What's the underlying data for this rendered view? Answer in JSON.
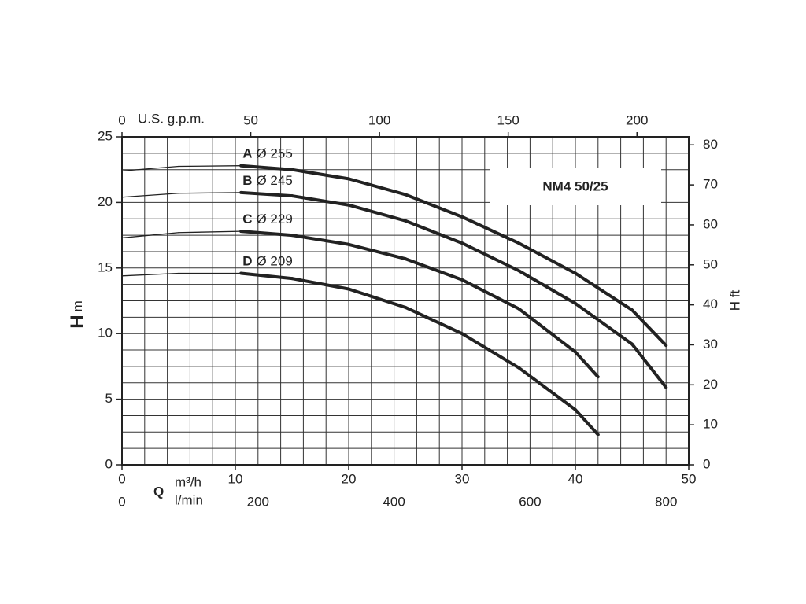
{
  "chart_data": {
    "type": "line",
    "title": "NM4 50/25",
    "x_label": {
      "symbol": "Q",
      "unit": "m³/h",
      "unit2": "l/min"
    },
    "y_label": {
      "symbol": "H",
      "unit": "m"
    },
    "y2_label": "H ft",
    "x2_label": "U.S. g.p.m.",
    "xlim": [
      0,
      50
    ],
    "xticks": [
      0,
      10,
      20,
      30,
      40,
      50
    ],
    "ylim": [
      0,
      25
    ],
    "yticks": [
      0,
      5,
      10,
      15,
      20,
      25
    ],
    "y2lim": [
      0,
      82.02
    ],
    "y2ticks": [
      0,
      10,
      20,
      30,
      40,
      50,
      60,
      70,
      80
    ],
    "x2lim": [
      0,
      220.1
    ],
    "x2ticks": [
      0,
      50,
      100,
      150,
      200
    ],
    "x3lim": [
      0,
      833.3
    ],
    "x3ticks": [
      0,
      200,
      400,
      600,
      800
    ],
    "xgrid": [
      0,
      2,
      4,
      6,
      8,
      10,
      12,
      14,
      16,
      18,
      20,
      22,
      24,
      26,
      28,
      30,
      32,
      34,
      36,
      38,
      40,
      42,
      44,
      46,
      48,
      50
    ],
    "ygrid": [
      0,
      1.25,
      2.5,
      3.75,
      5,
      6.25,
      7.5,
      8.75,
      10,
      11.25,
      12.5,
      13.75,
      15,
      16.25,
      17.5,
      18.75,
      20,
      21.25,
      22.5,
      23.75,
      25
    ],
    "bold_from": 10.5,
    "color": "#222222",
    "series": [
      {
        "name": "A",
        "diameter": "Ø 255",
        "x": [
          0,
          5,
          10.5,
          15,
          20,
          25,
          30,
          35,
          40,
          45,
          48
        ],
        "values": [
          22.4,
          22.75,
          22.8,
          22.5,
          21.8,
          20.6,
          18.9,
          16.9,
          14.6,
          11.8,
          9.1
        ]
      },
      {
        "name": "B",
        "diameter": "Ø 245",
        "x": [
          0,
          5,
          10.5,
          15,
          20,
          25,
          30,
          35,
          40,
          45,
          48
        ],
        "values": [
          20.4,
          20.7,
          20.75,
          20.5,
          19.8,
          18.6,
          16.9,
          14.8,
          12.3,
          9.2,
          5.9
        ]
      },
      {
        "name": "C",
        "diameter": "Ø 229",
        "x": [
          0,
          5,
          10.5,
          15,
          20,
          25,
          30,
          35,
          40,
          42
        ],
        "values": [
          17.3,
          17.7,
          17.8,
          17.5,
          16.8,
          15.7,
          14.1,
          11.9,
          8.6,
          6.7
        ]
      },
      {
        "name": "D",
        "diameter": "Ø 209",
        "x": [
          0,
          5,
          10.5,
          15,
          20,
          25,
          30,
          35,
          40,
          42
        ],
        "values": [
          14.4,
          14.6,
          14.6,
          14.2,
          13.4,
          12.0,
          10.0,
          7.4,
          4.2,
          2.3
        ]
      }
    ]
  }
}
